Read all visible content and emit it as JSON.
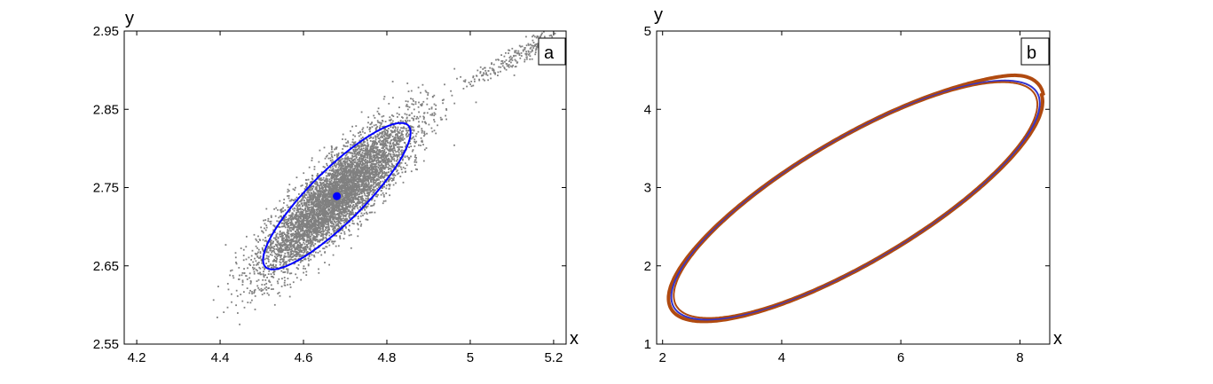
{
  "chart_data": [
    {
      "type": "scatter",
      "panel_label": "a",
      "xlabel": "x",
      "ylabel": "y",
      "xlim": [
        4.17,
        5.23
      ],
      "ylim": [
        2.55,
        2.95
      ],
      "xticks": [
        4.2,
        4.4,
        4.6,
        4.8,
        5,
        5.2
      ],
      "yticks": [
        2.55,
        2.65,
        2.75,
        2.85,
        2.95
      ],
      "xtick_labels": [
        "4.2",
        "4.4",
        "4.6",
        "4.8",
        "5",
        "5.2"
      ],
      "ytick_labels": [
        "2.55",
        "2.65",
        "2.75",
        "2.85",
        "2.95"
      ],
      "grid": false,
      "colors": {
        "scatter": "#808080",
        "ellipse": "#0000ff",
        "center": "#0000ff"
      },
      "center": {
        "x": 4.68,
        "y": 2.739
      },
      "ellipse": {
        "cx": 4.68,
        "cy": 2.739,
        "cov": [
          [
            0.0313,
            0.0144
          ],
          [
            0.0144,
            0.00875
          ]
        ]
      },
      "scatter_cloud": {
        "cx": 4.68,
        "cy": 2.739,
        "cov": [
          [
            0.008,
            0.00365
          ],
          [
            0.00365,
            0.00225
          ]
        ],
        "n": 6000
      },
      "tail": {
        "x": [
          4.99,
          5.05,
          5.09,
          5.12,
          5.15,
          5.17,
          5.19
        ],
        "y": [
          2.882,
          2.898,
          2.912,
          2.922,
          2.93,
          2.936,
          2.94
        ]
      }
    },
    {
      "type": "line",
      "panel_label": "b",
      "xlabel": "x",
      "ylabel": "y",
      "xlim": [
        1.9,
        8.5
      ],
      "ylim": [
        1,
        5
      ],
      "xticks": [
        2,
        4,
        6,
        8
      ],
      "yticks": [
        1,
        2,
        3,
        4,
        5
      ],
      "xtick_labels": [
        "2",
        "4",
        "6",
        "8"
      ],
      "ytick_labels": [
        "1",
        "2",
        "3",
        "4",
        "5"
      ],
      "grid": false,
      "colors": {
        "inner": "#3333cc",
        "outer": "#b04a10"
      },
      "series": [
        {
          "center_x": 5.24,
          "center_y": 2.84,
          "semi_major": 3.4,
          "semi_minor": 0.84,
          "angle_deg": 23.3
        }
      ]
    }
  ]
}
